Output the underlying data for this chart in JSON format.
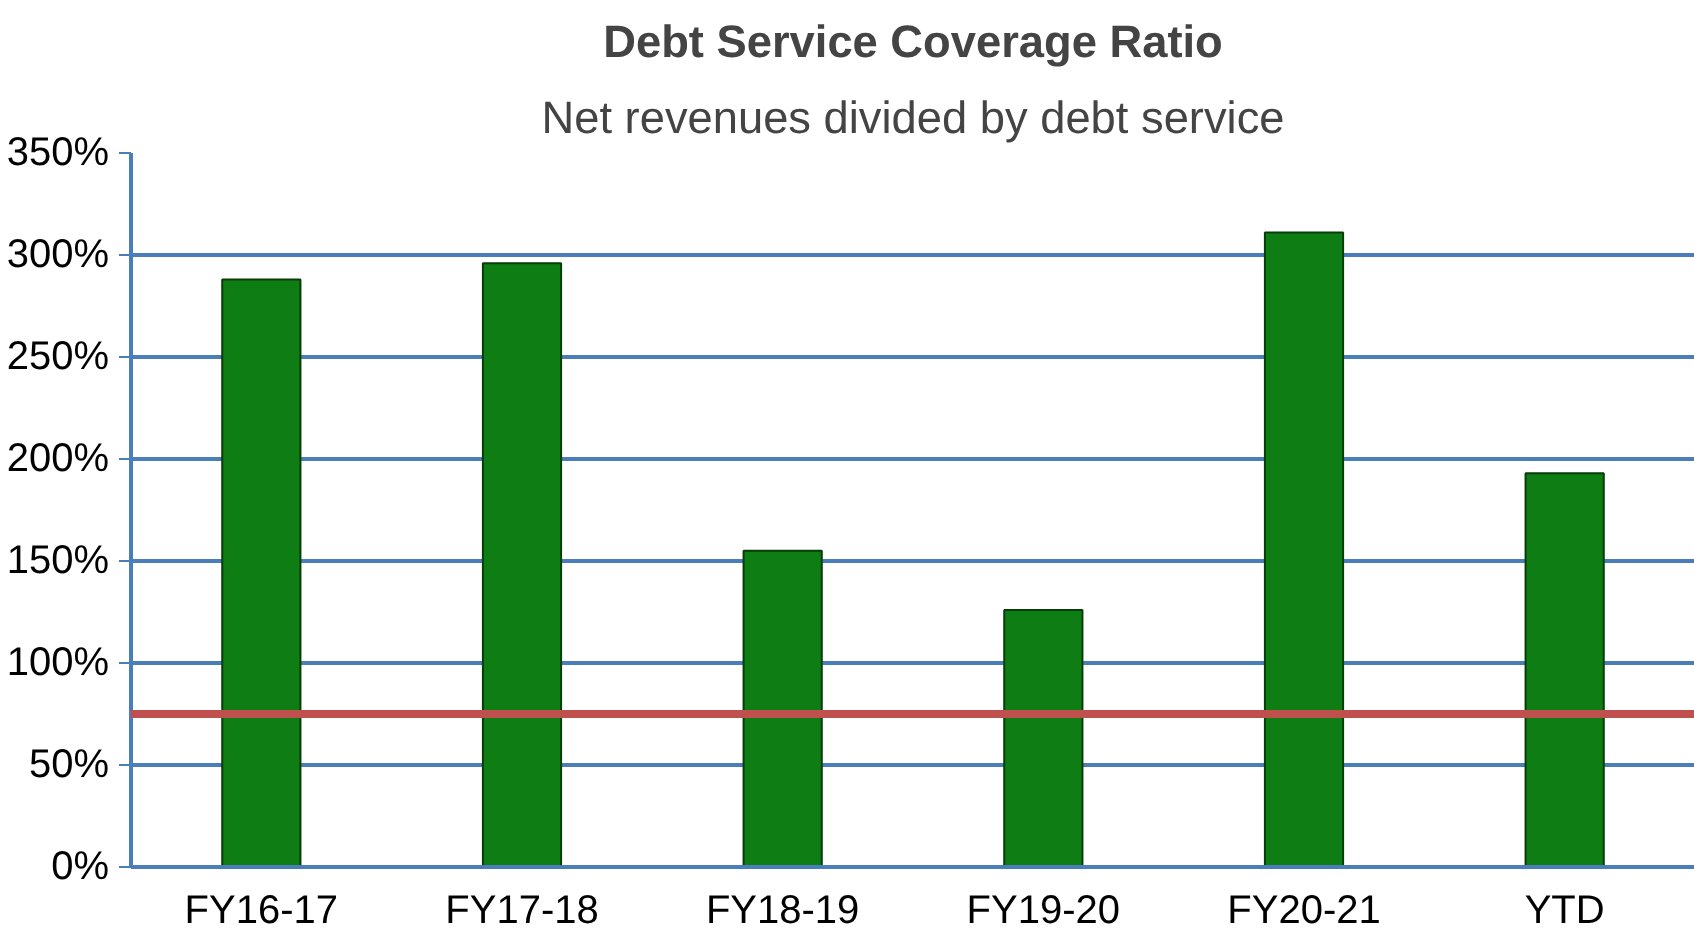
{
  "chart_data": {
    "type": "bar",
    "title": "Debt Service Coverage Ratio",
    "subtitle": "Net revenues divided by debt service",
    "categories": [
      "FY16-17",
      "FY17-18",
      "FY18-19",
      "FY19-20",
      "FY20-21",
      "YTD"
    ],
    "values": [
      288,
      296,
      155,
      126,
      311,
      193
    ],
    "color": "#0e7d14",
    "ylim": [
      0,
      350
    ],
    "yticks": [
      {
        "value": 0,
        "label": "0%"
      },
      {
        "value": 50,
        "label": "50%"
      },
      {
        "value": 100,
        "label": "100%"
      },
      {
        "value": 150,
        "label": "150%"
      },
      {
        "value": 200,
        "label": "200%"
      },
      {
        "value": 250,
        "label": "250%"
      },
      {
        "value": 300,
        "label": "300%"
      },
      {
        "value": 350,
        "label": "350%"
      }
    ],
    "grid": "y",
    "ref_lines": [
      {
        "axis": "y",
        "value": 75,
        "color": "#c0504d"
      }
    ]
  }
}
